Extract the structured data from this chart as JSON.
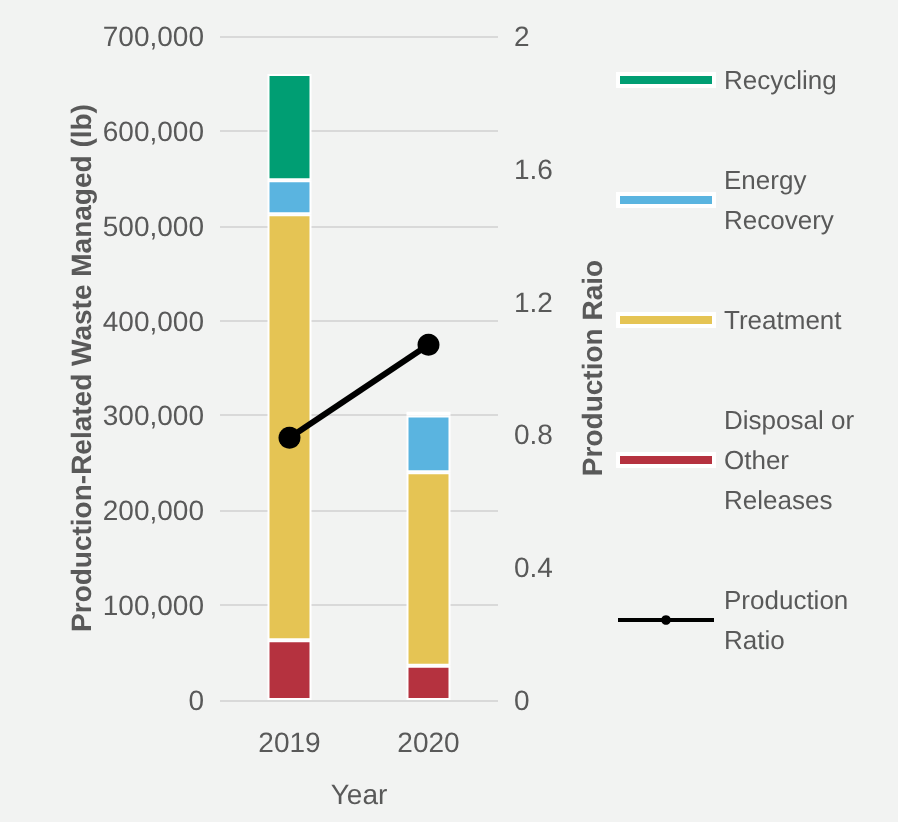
{
  "chart_data": {
    "type": "bar",
    "stacked": true,
    "xlabel": "Year",
    "ylabel": "Production-Related Waste Managed (lb)",
    "y2label": "Production Raio",
    "categories": [
      "2019",
      "2020"
    ],
    "series": [
      {
        "name": "Disposal or Other Releases",
        "color": "#b5323f",
        "values": [
          63000,
          36000
        ]
      },
      {
        "name": "Treatment",
        "color": "#e5c454",
        "values": [
          449000,
          204000
        ]
      },
      {
        "name": "Energy Recovery",
        "color": "#5ab4e0",
        "values": [
          36000,
          60000
        ]
      },
      {
        "name": "Recycling",
        "color": "#009e73",
        "values": [
          112000,
          4000
        ]
      },
      {
        "name": "Production Ratio",
        "type": "line",
        "axis": "y2",
        "color": "#000000",
        "values": [
          0.79,
          1.07
        ],
        "marker": "circle"
      }
    ],
    "ylim": [
      0,
      700000
    ],
    "yticks": [
      0,
      {
        "value": 100000,
        "label": "100,000"
      },
      {
        "value": 200000,
        "label": "200,000"
      },
      {
        "value": 300000,
        "label": "300,000"
      },
      {
        "value": 400000,
        "label": "400,000"
      },
      {
        "value": 500000,
        "label": "500,000"
      },
      {
        "value": 600000,
        "label": "600,000"
      },
      {
        "value": 700000,
        "label": "700,000"
      }
    ],
    "y2lim": [
      0,
      2
    ],
    "y2ticks": [
      0,
      0.4,
      0.8,
      1.2,
      1.6,
      2
    ],
    "grid": "y",
    "legend": "right"
  }
}
